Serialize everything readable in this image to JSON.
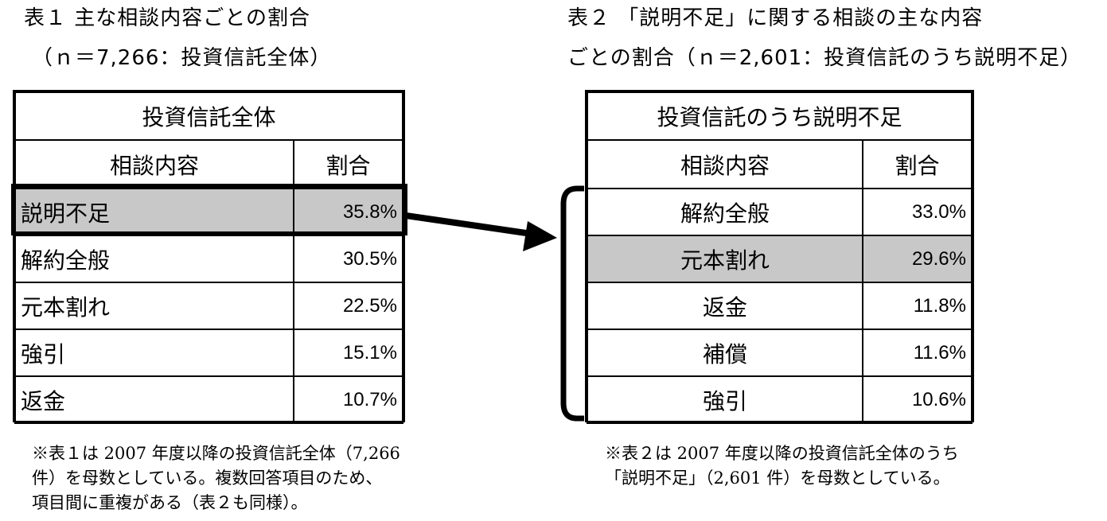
{
  "left": {
    "heading_line1": "表１ 主な相談内容ごとの割合",
    "heading_line2": "（ｎ＝7,266：投資信託全体）",
    "table_title": "投資信託全体",
    "col_content": "相談内容",
    "col_ratio": "割合",
    "rows": [
      {
        "label": "説明不足",
        "value": "35.8%"
      },
      {
        "label": "解約全般",
        "value": "30.5%"
      },
      {
        "label": "元本割れ",
        "value": "22.5%"
      },
      {
        "label": "強引",
        "value": "15.1%"
      },
      {
        "label": "返金",
        "value": "10.7%"
      }
    ],
    "note_lines": [
      "※表１は 2007 年度以降の投資信託全体（7,266",
      "件）を母数としている。複数回答項目のため、",
      "項目間に重複がある（表２も同様）。"
    ]
  },
  "right": {
    "heading_line1": "表２ 「説明不足」に関する相談の主な内容",
    "heading_line2": "ごとの割合（ｎ＝2,601：投資信託のうち説明不足）",
    "table_title": "投資信託のうち説明不足",
    "col_content": "相談内容",
    "col_ratio": "割合",
    "rows": [
      {
        "label": "解約全般",
        "value": "33.0%"
      },
      {
        "label": "元本割れ",
        "value": "29.6%"
      },
      {
        "label": "返金",
        "value": "11.8%"
      },
      {
        "label": "補償",
        "value": "11.6%"
      },
      {
        "label": "強引",
        "value": "10.6%"
      }
    ],
    "note_lines": [
      "※表２は 2007 年度以降の投資信託全体のうち",
      "「説明不足」（2,601 件）を母数としている。"
    ]
  },
  "colors": {
    "highlight": "#c8c8c8",
    "border": "#000000"
  }
}
